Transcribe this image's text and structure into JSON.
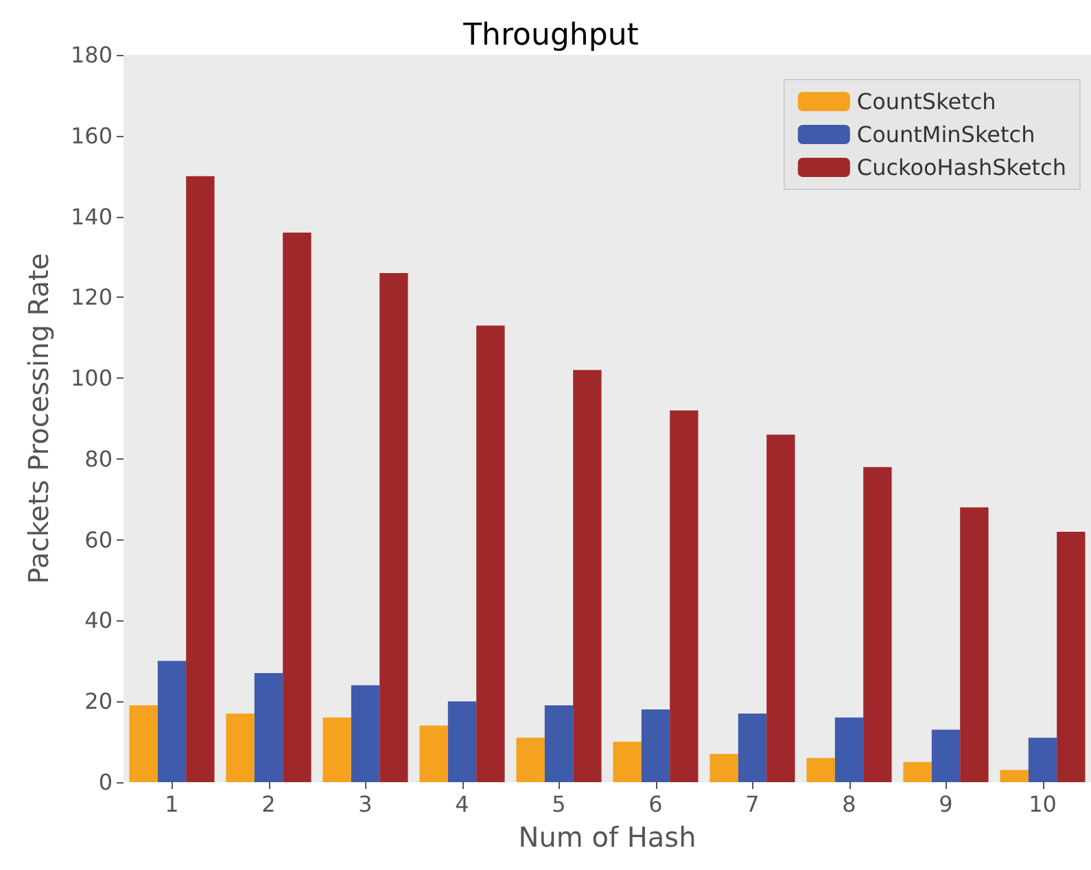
{
  "chart_data": {
    "type": "bar",
    "title": "Throughput",
    "xlabel": "Num of Hash",
    "ylabel": "Packets Processing Rate",
    "categories": [
      "1",
      "2",
      "3",
      "4",
      "5",
      "6",
      "7",
      "8",
      "9",
      "10"
    ],
    "series": [
      {
        "name": "CountSketch",
        "color": "#f5a21e",
        "values": [
          19,
          17,
          16,
          14,
          11,
          10,
          7,
          6,
          5,
          3
        ]
      },
      {
        "name": "CountMinSketch",
        "color": "#3f5bab",
        "values": [
          30,
          27,
          24,
          20,
          19,
          18,
          17,
          16,
          13,
          11
        ]
      },
      {
        "name": "CuckooHashSketch",
        "color": "#a0282a",
        "values": [
          150,
          136,
          126,
          113,
          102,
          92,
          86,
          78,
          68,
          62
        ]
      }
    ],
    "ylim": [
      0,
      180
    ],
    "yticks": [
      0,
      20,
      40,
      60,
      80,
      100,
      120,
      140,
      160,
      180
    ],
    "grid": false,
    "legend": "top right"
  }
}
